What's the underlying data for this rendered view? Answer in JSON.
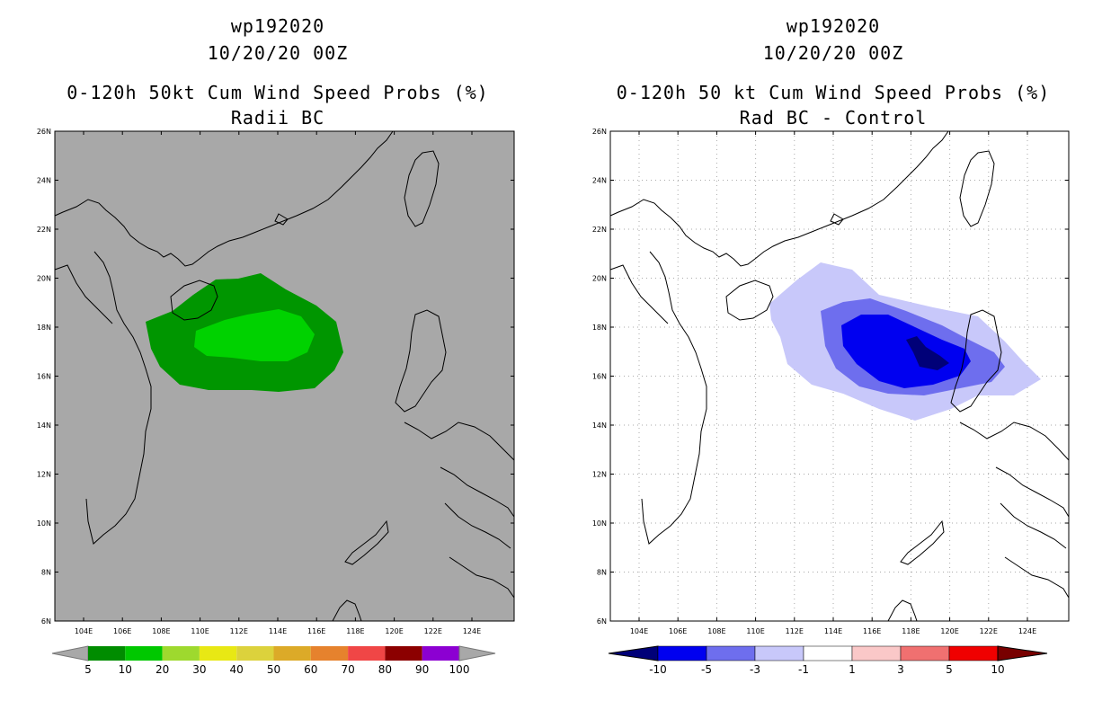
{
  "left": {
    "title_line1": "wp192020",
    "title_line2": "10/20/20 00Z",
    "title_line3": "0-120h 50kt Cum Wind Speed Probs (%)",
    "title_line4": "Radii BC",
    "y_labels": [
      "26N",
      "24N",
      "22N",
      "20N",
      "18N",
      "16N",
      "14N",
      "12N",
      "10N",
      "8N",
      "6N"
    ],
    "x_labels": [
      "104E",
      "106E",
      "108E",
      "110E",
      "112E",
      "114E",
      "116E",
      "118E",
      "120E",
      "122E",
      "124E"
    ],
    "colorbar": {
      "labels": [
        "5",
        "10",
        "20",
        "30",
        "40",
        "50",
        "60",
        "70",
        "80",
        "90",
        "100"
      ],
      "colors": [
        "#008c00",
        "#00c800",
        "#9ed92e",
        "#e8e814",
        "#dcd23c",
        "#dcaa28",
        "#e6822d",
        "#f04646",
        "#8c0000",
        "#8c00d2"
      ]
    }
  },
  "right": {
    "title_line1": "wp192020",
    "title_line2": "10/20/20 00Z",
    "title_line3": "0-120h 50 kt Cum Wind Speed Probs (%)",
    "title_line4": "Rad BC - Control",
    "y_labels": [
      "26N",
      "24N",
      "22N",
      "20N",
      "18N",
      "16N",
      "14N",
      "12N",
      "10N",
      "8N",
      "6N"
    ],
    "x_labels": [
      "104E",
      "106E",
      "108E",
      "110E",
      "112E",
      "114E",
      "116E",
      "118E",
      "120E",
      "122E",
      "124E"
    ],
    "colorbar": {
      "labels": [
        "-10",
        "-5",
        "-3",
        "-1",
        "1",
        "3",
        "5",
        "10"
      ],
      "colors": [
        "#000078",
        "#0000f0",
        "#6e6eee",
        "#c8c8fa",
        "#ffffff",
        "#fac8c8",
        "#f07070",
        "#f00000",
        "#780000"
      ]
    }
  },
  "colors": {
    "land_bg": "#a8a8a8",
    "green_outer": "#009600",
    "green_inner": "#00d200",
    "blue_light": "#c8c8fa",
    "blue_mid": "#6e6eee",
    "blue_strong": "#0000f0",
    "blue_dark": "#000078"
  }
}
